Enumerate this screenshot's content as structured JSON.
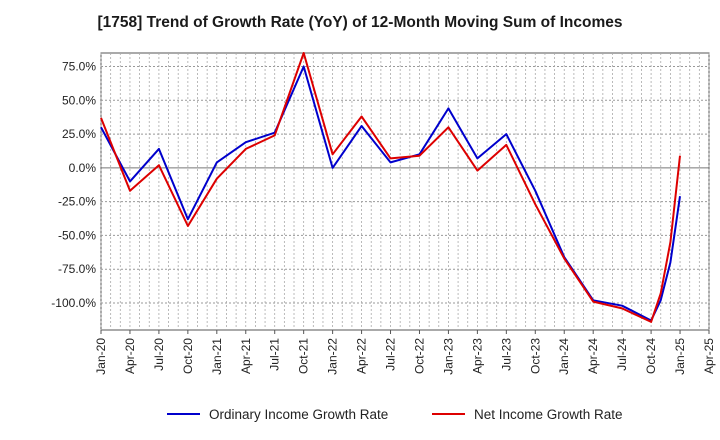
{
  "chart_data": {
    "type": "line",
    "title": "[1758]  Trend of Growth Rate (YoY) of 12-Month Moving Sum of Incomes",
    "xlabel": "",
    "ylabel": "",
    "x_tick_labels": [
      "Jan-20",
      "Apr-20",
      "Jul-20",
      "Oct-20",
      "Jan-21",
      "Apr-21",
      "Jul-21",
      "Oct-21",
      "Jan-22",
      "Apr-22",
      "Jul-22",
      "Oct-22",
      "Jan-23",
      "Apr-23",
      "Jul-23",
      "Oct-23",
      "Jan-24",
      "Apr-24",
      "Jul-24",
      "Oct-24",
      "Jan-25",
      "Apr-25"
    ],
    "y_ticks": [
      75,
      50,
      25,
      0,
      -25,
      -50,
      -75,
      -100
    ],
    "y_tick_labels": [
      "75.0%",
      "50.0%",
      "25.0%",
      "0.0%",
      "-25.0%",
      "-50.0%",
      "-75.0%",
      "-100.0%"
    ],
    "ylim": [
      -120,
      85
    ],
    "grid": true,
    "legend_position": "bottom",
    "series": [
      {
        "name": "Ordinary Income Growth Rate",
        "color": "#0000cc",
        "x": [
          "Jan-20",
          "Apr-20",
          "Jul-20",
          "Oct-20",
          "Jan-21",
          "Apr-21",
          "Jul-21",
          "Oct-21",
          "Jan-22",
          "Apr-22",
          "Jul-22",
          "Oct-22",
          "Jan-23",
          "Apr-23",
          "Jul-23",
          "Oct-23",
          "Jan-24",
          "Apr-24",
          "Jul-24",
          "Oct-24",
          "Nov-24",
          "Dec-24",
          "Jan-25"
        ],
        "values": [
          30,
          -10,
          14,
          -38,
          4,
          19,
          26,
          75,
          0,
          31,
          4,
          10,
          44,
          7,
          25,
          -17,
          -66,
          -98,
          -102,
          -113,
          -98,
          -70,
          -21
        ]
      },
      {
        "name": "Net Income Growth Rate",
        "color": "#dd0000",
        "x": [
          "Jan-20",
          "Apr-20",
          "Jul-20",
          "Oct-20",
          "Jan-21",
          "Apr-21",
          "Jul-21",
          "Oct-21",
          "Jan-22",
          "Apr-22",
          "Jul-22",
          "Oct-22",
          "Jan-23",
          "Apr-23",
          "Jul-23",
          "Oct-23",
          "Jan-24",
          "Apr-24",
          "Jul-24",
          "Oct-24",
          "Nov-24",
          "Dec-24",
          "Jan-25"
        ],
        "values": [
          37,
          -17,
          2,
          -43,
          -8,
          14,
          24,
          85,
          10,
          38,
          7,
          9,
          30,
          -2,
          17,
          -27,
          -67,
          -99,
          -104,
          -114,
          -93,
          -55,
          9
        ]
      }
    ]
  }
}
